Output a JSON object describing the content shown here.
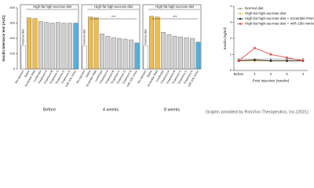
{
  "chart_data": [
    {
      "type": "bar",
      "ylabel": "Insulin tolerance test (AUC)",
      "ylim": [
        0,
        400
      ],
      "yticks": [
        0,
        100,
        200,
        300,
        400
      ],
      "group_label": "High-fat high-sucrose diet",
      "reference_label": "Normal diet",
      "categories": [
        "No injection",
        "Saline",
        "Scramble RNA",
        "Luciferase",
        "Treatment A",
        "Treatment B",
        "Treatment C",
        "Treatment D",
        "Treatment E",
        "miR-10b mimic"
      ],
      "colors": [
        "#ffffff",
        "#f2bd45",
        "#f2bd45",
        "#d0d0d0",
        "#d0d0d0",
        "#d0d0d0",
        "#d0d0d0",
        "#d0d0d0",
        "#d0d0d0",
        "#4db3ea"
      ],
      "panels": [
        {
          "name": "Before",
          "values": [
            150,
            335,
            330,
            310,
            305,
            300,
            305,
            300,
            300,
            300
          ]
        },
        {
          "name": "4 weeks",
          "values": [
            150,
            340,
            335,
            230,
            215,
            205,
            200,
            195,
            190,
            170
          ],
          "annotation": "***"
        },
        {
          "name": "8 weeks",
          "values": [
            150,
            345,
            340,
            240,
            225,
            215,
            210,
            205,
            200,
            175
          ],
          "annotation": "***"
        }
      ]
    },
    {
      "type": "line",
      "ylabel": "Insulin (ng/ml)",
      "xlabel": "Post injection (weeks)",
      "categories": [
        "Before",
        "1",
        "2",
        "3",
        "4"
      ],
      "ylim": [
        0,
        4
      ],
      "yticks": [
        0,
        1,
        2,
        3,
        4
      ],
      "series": [
        {
          "name": "Normal diet",
          "color": "#9a9a9a",
          "values": [
            0.7,
            0.7,
            0.7,
            0.7,
            0.7
          ]
        },
        {
          "name": "High-fat high-sucrose diet",
          "color": "#f2bd45",
          "values": [
            0.6,
            0.6,
            0.6,
            0.6,
            0.6
          ]
        },
        {
          "name": "High-fat high-sucrose diet + Scramble RNA",
          "color": "#222222",
          "values": [
            0.6,
            0.65,
            0.6,
            0.6,
            0.6
          ]
        },
        {
          "name": "High-fat high-sucrose diet + miR-10b mimic",
          "color": "#e0352b",
          "values": [
            0.6,
            1.4,
            1.0,
            0.8,
            0.6
          ]
        }
      ]
    }
  ],
  "footer": "Graphs provided by RosVivo Therapeutics, Inc.(2021)"
}
